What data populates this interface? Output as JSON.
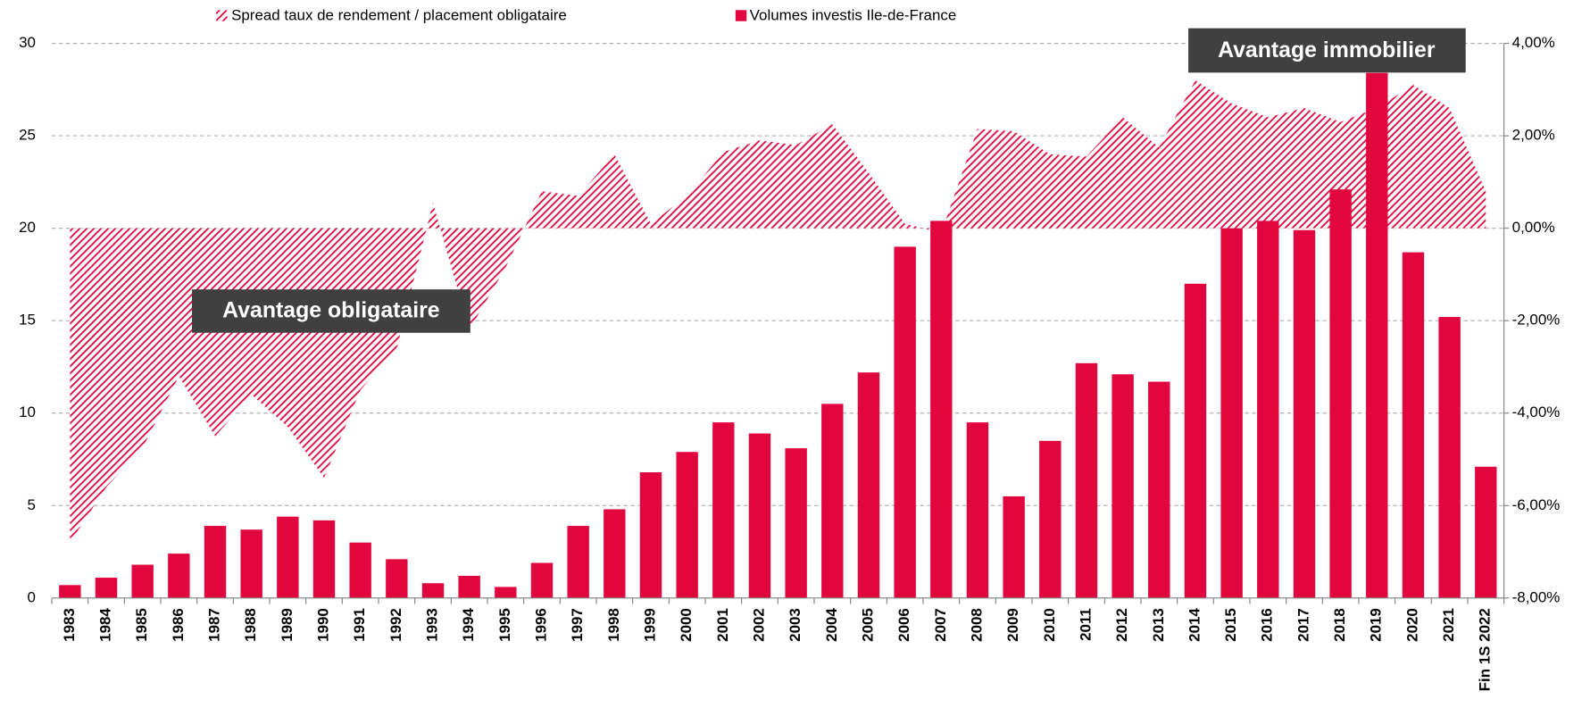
{
  "chart_data": {
    "type": "bar",
    "categories": [
      "1983",
      "1984",
      "1985",
      "1986",
      "1987",
      "1988",
      "1989",
      "1990",
      "1991",
      "1992",
      "1993",
      "1994",
      "1995",
      "1996",
      "1997",
      "1998",
      "1999",
      "2000",
      "2001",
      "2002",
      "2003",
      "2004",
      "2005",
      "2006",
      "2007",
      "2008",
      "2009",
      "2010",
      "2011",
      "2012",
      "2013",
      "2014",
      "2015",
      "2016",
      "2017",
      "2018",
      "2019",
      "2020",
      "2021",
      "Fin 1S 2022"
    ],
    "series": [
      {
        "name": "Spread taux de rendement / placement obligataire",
        "type": "area",
        "axis": "y2",
        "color": "#e2063f",
        "values": [
          -6.8,
          -5.6,
          -4.75,
          -3.2,
          -4.5,
          -3.6,
          -4.3,
          -5.4,
          -3.5,
          -2.6,
          0.55,
          -2.2,
          -0.85,
          0.8,
          0.7,
          1.6,
          0.1,
          0.7,
          1.65,
          1.9,
          1.8,
          2.25,
          1.2,
          0.1,
          -0.1,
          2.15,
          2.1,
          1.6,
          1.55,
          2.4,
          1.75,
          3.2,
          2.7,
          2.4,
          2.6,
          2.3,
          2.6,
          3.1,
          2.6,
          0.8
        ]
      },
      {
        "name": "Volumes investis Ile-de-France",
        "type": "bar",
        "color": "#e2063f",
        "values": [
          0.7,
          1.1,
          1.8,
          2.4,
          3.9,
          3.7,
          4.4,
          4.2,
          3.0,
          2.1,
          0.8,
          1.2,
          0.6,
          1.9,
          3.9,
          4.8,
          6.8,
          7.9,
          9.5,
          8.9,
          8.1,
          10.5,
          12.2,
          19.0,
          20.4,
          9.5,
          5.5,
          8.5,
          12.7,
          12.1,
          11.7,
          17.0,
          20.0,
          20.4,
          19.9,
          22.1,
          28.4,
          18.7,
          15.2,
          7.1
        ]
      }
    ],
    "ylim": [
      0,
      30
    ],
    "yticks": [
      0,
      5,
      10,
      15,
      20,
      25,
      30
    ],
    "y2lim": [
      -8,
      4
    ],
    "y2ticks": [
      {
        "value": -8,
        "label": "-8,00%"
      },
      {
        "value": -6,
        "label": "-6,00%"
      },
      {
        "value": -4,
        "label": "-4,00%"
      },
      {
        "value": -2,
        "label": "-2,00%"
      },
      {
        "value": 0,
        "label": "0,00%"
      },
      {
        "value": 2,
        "label": "2,00%"
      },
      {
        "value": 4,
        "label": "4,00%"
      }
    ],
    "grid": true,
    "legend": "top",
    "annotations": [
      "Avantage obligataire",
      "Avantage immobilier"
    ]
  }
}
